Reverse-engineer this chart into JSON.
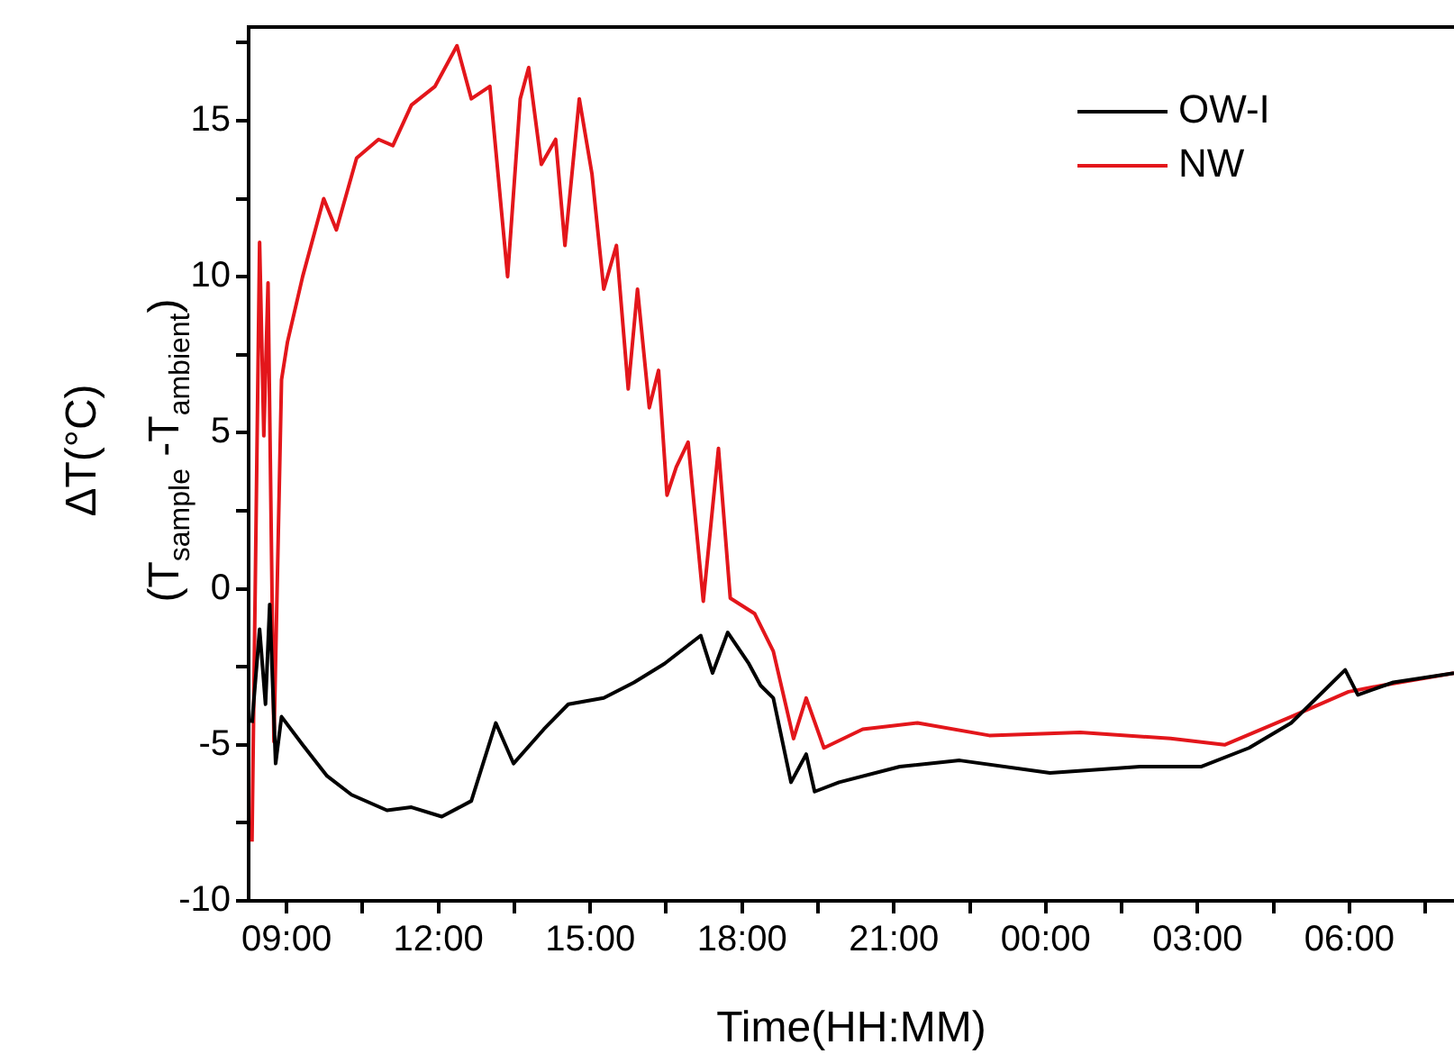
{
  "chart_data": {
    "type": "line",
    "xlabel": "Time(HH:MM)",
    "ylabel": "ΔT(°C)\n(T$_{sample}$ -T$_{ambient}$)",
    "xlim": [
      "--01-01T08:15",
      "--01-02T08:04"
    ],
    "ylim": [
      -10,
      18
    ],
    "xticks": [
      {
        "value": "--01-01T09:00",
        "label": "09:00"
      },
      {
        "value": "--01-01T10:30",
        "label": null
      },
      {
        "value": "--01-01T12:00",
        "label": "12:00"
      },
      {
        "value": "--01-01T13:30",
        "label": null
      },
      {
        "value": "--01-01T15:00",
        "label": "15:00"
      },
      {
        "value": "--01-01T16:30",
        "label": null
      },
      {
        "value": "--01-01T18:00",
        "label": "18:00"
      },
      {
        "value": "--01-01T19:30",
        "label": null
      },
      {
        "value": "--01-01T21:00",
        "label": "21:00"
      },
      {
        "value": "--01-01T22:30",
        "label": null
      },
      {
        "value": "--01-02T00:00",
        "label": "00:00"
      },
      {
        "value": "--01-02T01:30",
        "label": null
      },
      {
        "value": "--01-02T03:00",
        "label": "03:00"
      },
      {
        "value": "--01-02T04:30",
        "label": null
      },
      {
        "value": "--01-02T06:00",
        "label": "06:00"
      },
      {
        "value": "--01-02T07:30",
        "label": null
      }
    ],
    "yticks": [
      -10,
      {
        "value": -7.5,
        "label": null
      },
      -5,
      {
        "value": -2.5,
        "label": null
      },
      0,
      {
        "value": 2.5,
        "label": null
      },
      5,
      {
        "value": 7.5,
        "label": null
      },
      10,
      {
        "value": 12.5,
        "label": null
      },
      15,
      {
        "value": 17.5,
        "label": null
      }
    ],
    "grid": false,
    "legend": "top right",
    "marker": "none",
    "line_style": "solid",
    "series": [
      {
        "name": "OW-I",
        "color": "#000000",
        "x": [
          "--01-01T08:19",
          "--01-01T08:28",
          "--01-01T08:35",
          "--01-01T08:40",
          "--01-01T08:47",
          "--01-01T08:54",
          "--01-01T09:19",
          "--01-01T09:48",
          "--01-01T10:17",
          "--01-01T10:59",
          "--01-01T11:28",
          "--01-01T12:04",
          "--01-01T12:39",
          "--01-01T13:08",
          "--01-01T13:29",
          "--01-01T14:05",
          "--01-01T14:34",
          "--01-01T15:16",
          "--01-01T15:52",
          "--01-01T16:28",
          "--01-01T17:11",
          "--01-01T17:25",
          "--01-01T17:43",
          "--01-01T18:08",
          "--01-01T18:22",
          "--01-01T18:37",
          "--01-01T18:58",
          "--01-01T19:16",
          "--01-01T19:26",
          "--01-01T19:55",
          "--01-01T21:07",
          "--01-01T22:18",
          "--01-02T00:05",
          "--01-02T01:52",
          "--01-02T03:04",
          "--01-02T04:01",
          "--01-02T04:51",
          "--01-02T05:55",
          "--01-02T06:10",
          "--01-02T06:52",
          "--01-02T08:04"
        ],
        "values": [
          -4.3,
          -1.3,
          -3.7,
          -0.5,
          -5.6,
          -4.1,
          -5.0,
          -6.0,
          -6.6,
          -7.1,
          -7.0,
          -7.3,
          -6.8,
          -4.3,
          -5.6,
          -4.5,
          -3.7,
          -3.5,
          -3.0,
          -2.4,
          -1.5,
          -2.7,
          -1.4,
          -2.4,
          -3.1,
          -3.5,
          -6.2,
          -5.3,
          -6.5,
          -6.2,
          -5.7,
          -5.5,
          -5.9,
          -5.7,
          -5.7,
          -5.1,
          -4.3,
          -2.6,
          -3.4,
          -3.0,
          -2.7
        ]
      },
      {
        "name": "NW",
        "color": "#e3161b",
        "x": [
          "--01-01T08:19",
          "--01-01T08:28",
          "--01-01T08:33",
          "--01-01T08:38",
          "--01-01T08:45",
          "--01-01T08:54",
          "--01-01T09:01",
          "--01-01T09:19",
          "--01-01T09:44",
          "--01-01T09:59",
          "--01-01T10:23",
          "--01-01T10:49",
          "--01-01T11:06",
          "--01-01T11:28",
          "--01-01T11:56",
          "--01-01T12:22",
          "--01-01T12:39",
          "--01-01T13:01",
          "--01-01T13:22",
          "--01-01T13:37",
          "--01-01T13:47",
          "--01-01T14:02",
          "--01-01T14:19",
          "--01-01T14:30",
          "--01-01T14:47",
          "--01-01T15:02",
          "--01-01T15:16",
          "--01-01T15:31",
          "--01-01T15:45",
          "--01-01T15:56",
          "--01-01T16:10",
          "--01-01T16:21",
          "--01-01T16:31",
          "--01-01T16:42",
          "--01-01T16:56",
          "--01-01T17:14",
          "--01-01T17:32",
          "--01-01T17:46",
          "--01-01T18:15",
          "--01-01T18:37",
          "--01-01T19:01",
          "--01-01T19:16",
          "--01-01T19:37",
          "--01-01T20:23",
          "--01-01T21:28",
          "--01-01T22:53",
          "--01-02T00:41",
          "--01-02T02:28",
          "--01-02T03:32",
          "--01-02T04:51",
          "--01-02T05:59",
          "--01-02T06:38",
          "--01-02T08:04"
        ],
        "values": [
          -8.1,
          11.1,
          4.9,
          9.8,
          -4.9,
          6.7,
          7.9,
          10.0,
          12.5,
          11.5,
          13.8,
          14.4,
          14.2,
          15.5,
          16.1,
          17.4,
          15.7,
          16.1,
          10.0,
          15.7,
          16.7,
          13.6,
          14.4,
          11.0,
          15.7,
          13.3,
          9.6,
          11.0,
          6.4,
          9.6,
          5.8,
          7.0,
          3.0,
          3.9,
          4.7,
          -0.4,
          4.5,
          -0.3,
          -0.8,
          -2.0,
          -4.8,
          -3.5,
          -5.1,
          -4.5,
          -4.3,
          -4.7,
          -4.6,
          -4.8,
          -5.0,
          -4.1,
          -3.3,
          -3.1,
          -2.7
        ]
      }
    ]
  }
}
